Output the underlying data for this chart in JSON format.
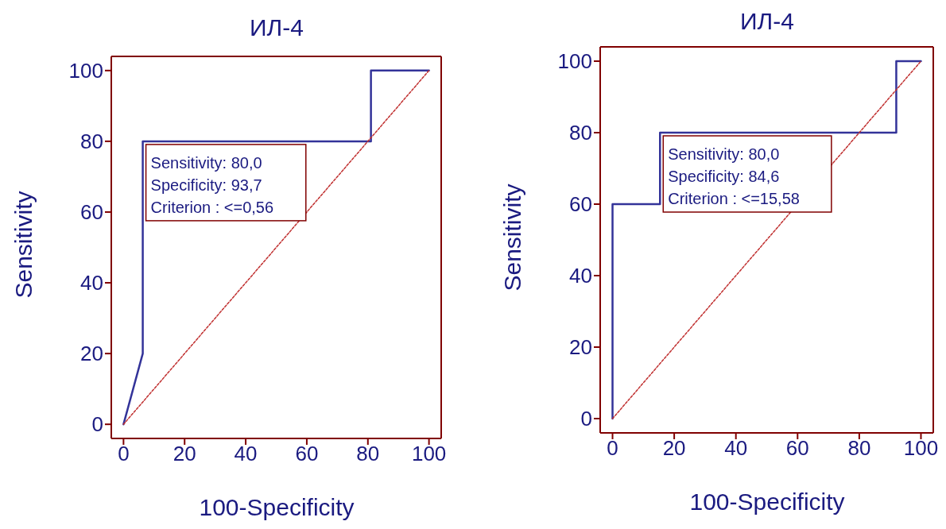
{
  "chart_data": [
    {
      "type": "line",
      "title": "ИЛ-4",
      "xlabel": "100-Specificity",
      "ylabel": "Sensitivity",
      "xlim": [
        -4,
        104
      ],
      "ylim": [
        -4,
        104
      ],
      "xticks": [
        0,
        20,
        40,
        60,
        80,
        100
      ],
      "yticks": [
        0,
        20,
        40,
        60,
        80,
        100
      ],
      "marker": "none",
      "series": [
        {
          "color": "#333399",
          "line_style": "solid",
          "x": [
            0,
            6.3,
            6.3,
            81,
            81,
            100
          ],
          "values": [
            0,
            20,
            80,
            80,
            100,
            100
          ]
        },
        {
          "color": "#c03030",
          "line_style": "dotted",
          "x": [
            0,
            100
          ],
          "values": [
            0,
            100
          ]
        }
      ],
      "annotations": [
        {
          "text": "Sensitivity: 80,0\nSpecificity: 93,7\nCriterion : <=0,56",
          "x": 6.3,
          "y": 80
        }
      ]
    },
    {
      "type": "line",
      "title": "ИЛ-4",
      "xlabel": "100-Specificity",
      "ylabel": "Sensitivity",
      "xlim": [
        -4,
        104
      ],
      "ylim": [
        -4,
        104
      ],
      "xticks": [
        0,
        20,
        40,
        60,
        80,
        100
      ],
      "yticks": [
        0,
        20,
        40,
        60,
        80,
        100
      ],
      "marker": "none",
      "series": [
        {
          "color": "#333399",
          "line_style": "solid",
          "x": [
            0,
            0,
            15.4,
            15.4,
            92,
            92,
            100
          ],
          "values": [
            0,
            60,
            60,
            80,
            80,
            100,
            100
          ]
        },
        {
          "color": "#c03030",
          "line_style": "dotted",
          "x": [
            0,
            100
          ],
          "values": [
            0,
            100
          ]
        }
      ],
      "annotations": [
        {
          "text": "Sensitivity: 80,0\nSpecificity: 84,6\nCriterion : <=15,58",
          "x": 15.4,
          "y": 80
        }
      ]
    }
  ]
}
